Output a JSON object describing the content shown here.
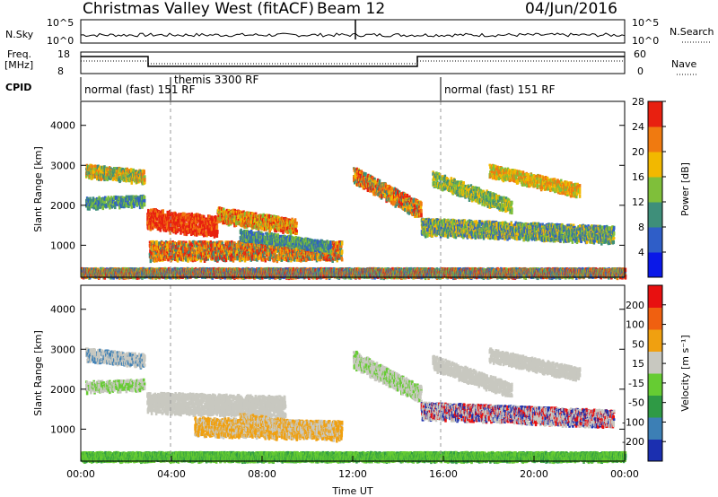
{
  "header": {
    "title": "Christmas Valley West (fitACF)",
    "beam": "Beam 12",
    "date": "04/Jun/2016"
  },
  "top_panels": {
    "nsky_label": "N.Sky",
    "nsearch_label": "N.Search",
    "nsky_ticks": [
      "10^5",
      "10^0"
    ],
    "nsearch_ticks": [
      "10^5",
      "10^0"
    ],
    "freq_label": "Freq.",
    "freq_unit": "[MHz]",
    "freq_ticks": [
      "18",
      "8"
    ],
    "nave_label": "Nave",
    "nave_ticks": [
      "60",
      "0"
    ],
    "cpid_label": "CPID",
    "modes": [
      "normal (fast) 151 RF",
      "themis 3300 RF",
      "normal (fast) 151 RF"
    ]
  },
  "chart_data": [
    {
      "type": "heatmap",
      "name": "power-panel",
      "ylabel": "Slant Range [km]",
      "yticks": [
        1000,
        2000,
        3000,
        4000
      ],
      "ylim": [
        200,
        4600
      ],
      "xlim": [
        0,
        24
      ],
      "colorbar": {
        "label": "Power [dB]",
        "ticks": [
          "4",
          "8",
          "12",
          "16",
          "20",
          "24",
          "28"
        ],
        "colors": [
          "#0a18e8",
          "#2f5ec8",
          "#3e8f7a",
          "#7fbf3a",
          "#f2b800",
          "#f07a10",
          "#e82010"
        ]
      }
    },
    {
      "type": "heatmap",
      "name": "velocity-panel",
      "ylabel": "Slant Range [km]",
      "yticks": [
        1000,
        2000,
        3000,
        4000
      ],
      "ylim": [
        200,
        4600
      ],
      "xlim": [
        0,
        24
      ],
      "xlabel": "Time UT",
      "xticks": [
        "00:00",
        "04:00",
        "08:00",
        "12:00",
        "16:00",
        "20:00",
        "00:00"
      ],
      "colorbar": {
        "label": "Velocity [m s⁻¹]",
        "ticks": [
          "200",
          "100",
          "50",
          "15",
          "-15",
          "-50",
          "-100",
          "-200"
        ],
        "colors": [
          "#1b2fb0",
          "#3c7fb5",
          "#2f9a45",
          "#66cc33",
          "#c8c8c0",
          "#f0a010",
          "#f06010",
          "#e81010"
        ]
      }
    }
  ]
}
